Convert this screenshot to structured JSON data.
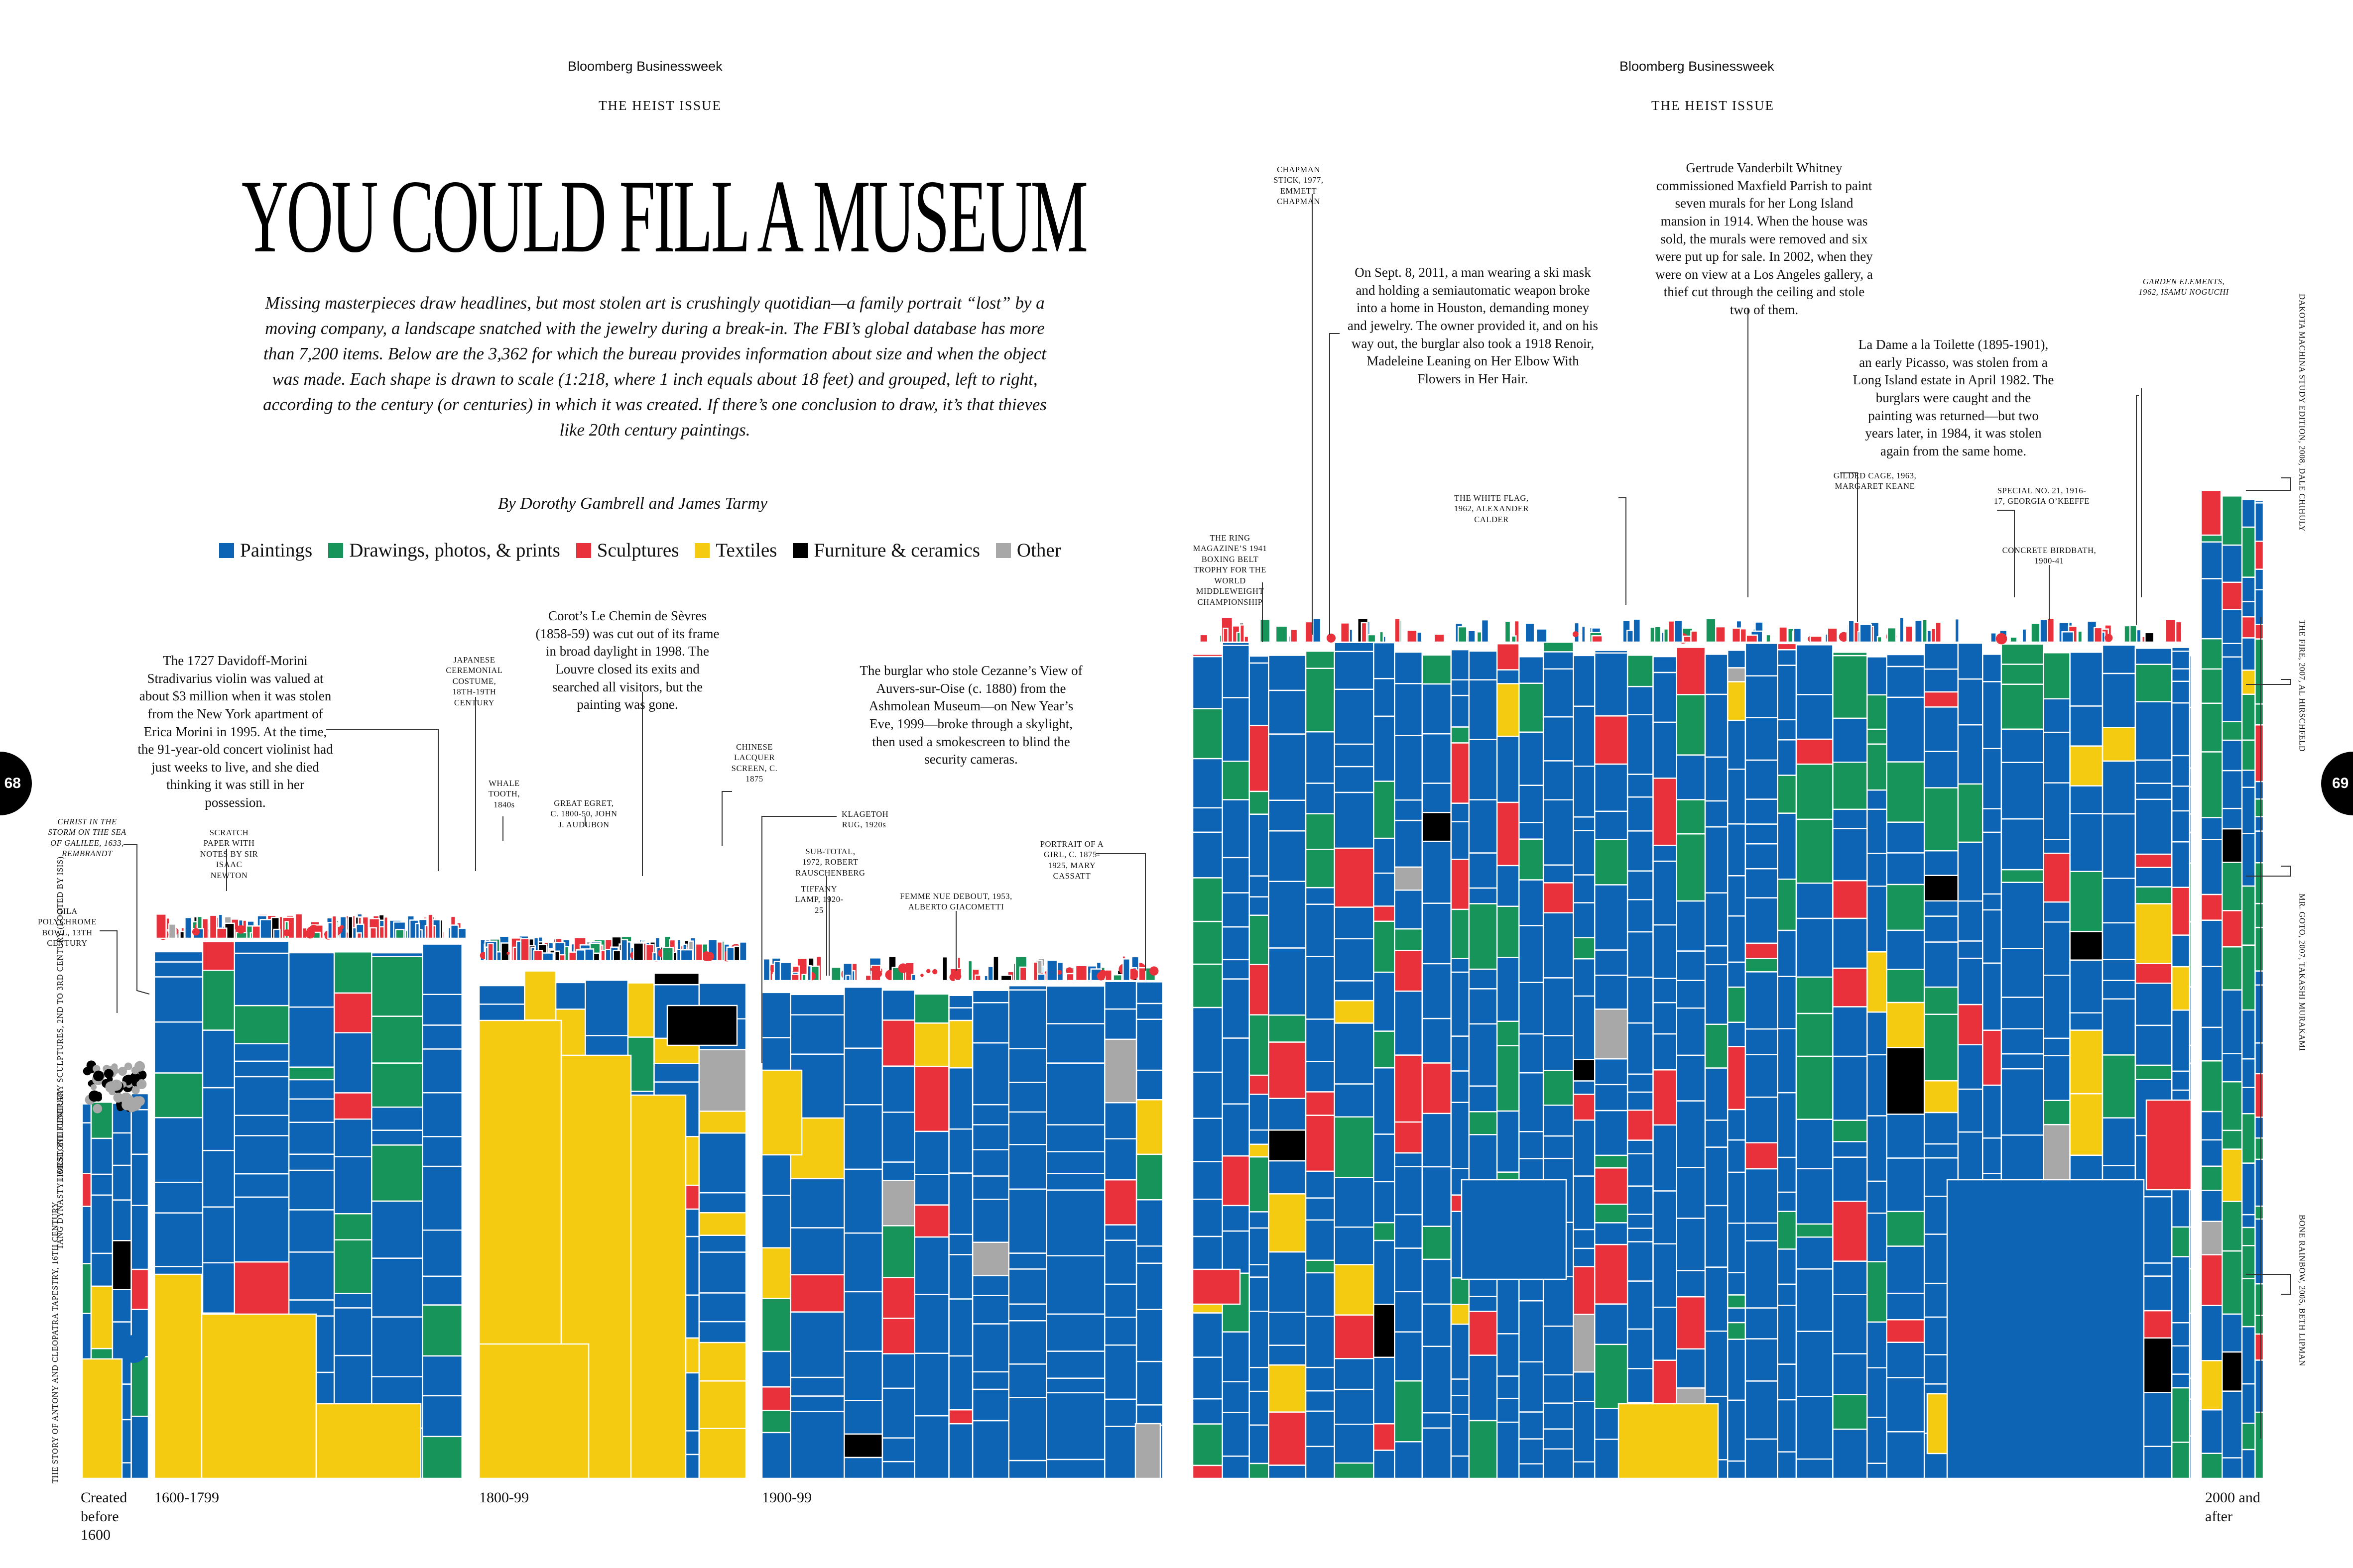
{
  "masthead": {
    "left": "Bloomberg Businessweek",
    "right": "Bloomberg Businessweek",
    "kicker_left": "THE HEIST ISSUE",
    "kicker_right": "THE HEIST ISSUE"
  },
  "title": "YOU COULD FILL A MUSEUM",
  "dek": "Missing masterpieces draw headlines, but most stolen art is crushingly quotidian—a family portrait “lost” by a moving company, a landscape snatched with the jewelry during a break-in. The FBI’s global database has more than 7,200 items. Below are the 3,362 for which the bureau provides information about size and when the object was made. Each shape is drawn to scale (1:218, where 1 inch equals about 18 feet) and grouped, left to right, according to the century (or centuries) in which it was created. If there’s one conclusion to draw, it’s that thieves like 20th century paintings.",
  "byline": "By Dorothy Gambrell and James Tarmy",
  "legend": [
    {
      "label": "Paintings",
      "color": "#0d63b4"
    },
    {
      "label": "Drawings, photos, & prints",
      "color": "#16945a"
    },
    {
      "label": "Sculptures",
      "color": "#e8313b"
    },
    {
      "label": "Textiles",
      "color": "#f5cb12"
    },
    {
      "label": "Furniture & ceramics",
      "color": "#000000"
    },
    {
      "label": "Other",
      "color": "#a8a8a8"
    }
  ],
  "page_numbers": {
    "left": "68",
    "right": "69"
  },
  "notes": {
    "stradivarius": "The 1727 Davidoff-Morini Stradivarius violin was valued at about $3 million when it was stolen from the New York apartment of Erica Morini in 1995. At the time, the 91-year-old concert violinist had just weeks to live, and she died thinking it was still in her possession.",
    "corot": "Corot’s Le Chemin de Sèvres (1858-59) was cut out of its frame in broad daylight in 1998. The Louvre closed its exits and searched all visitors, but the painting was gone.",
    "cezanne": "The burglar who stole Cezanne’s View of Auvers-sur-Oise (c. 1880) from the Ashmolean Museum—on New Year’s Eve, 1999—broke through a skylight, then used a smokescreen to blind the security cameras.",
    "houston": "On Sept. 8, 2011, a man wearing a ski mask and holding a semiautomatic weapon broke into a home in Houston, demanding money and jewelry. The owner provided it, and on his way out, the burglar also took a 1918 Renoir, Madeleine Leaning on Her Elbow With Flowers in Her Hair.",
    "whitney": "Gertrude Vanderbilt Whitney commissioned Maxfield Parrish to paint seven murals for her Long Island mansion in 1914. When the house was sold, the murals were removed and six were put up for sale. In 2002, when they were on view at a Los Angeles gallery, a thief cut through the ceiling and stole two of them.",
    "picasso": "La Dame a la Toilette (1895-1901), an early Picasso, was stolen from a Long Island estate in April 1982. The burglars were caught and the painting was returned—but two years later, in 1984, it was stolen again from the same home."
  },
  "labels": {
    "christ": "CHRIST IN THE STORM ON THE SEA OF GALILEE, 1633, REMBRANDT",
    "gila": "GILA POLYCHROME BOWL, 13TH CENTURY",
    "newton": "SCRATCH PAPER WITH NOTES BY SIR ISAAC NEWTON",
    "japanese": "JAPANESE CEREMONIAL COSTUME, 18TH-19TH CENTURY",
    "whale": "WHALE TOOTH, 1840s",
    "egret": "GREAT EGRET, C. 1800-50, JOHN J. AUDUBON",
    "chinese": "CHINESE LACQUER SCREEN, C. 1875",
    "klagetoh": "KLAGETOH RUG, 1920s",
    "subtotal": "SUB-TOTAL, 1972, ROBERT RAUSCHENBERG",
    "tiffany": "TIFFANY LAMP, 1920-25",
    "femme": "FEMME NUE DEBOUT, 1953, ALBERTO GIACOMETTI",
    "cassatt": "PORTRAIT OF A GIRL, C. 1875-1925, MARY CASSATT",
    "chapman": "CHAPMAN STICK, 1977, EMMETT CHAPMAN",
    "ring": "THE RING MAGAZINE’S 1941 BOXING BELT TROPHY FOR THE WORLD MIDDLEWEIGHT CHAMPIONSHIP",
    "whiteflag": "THE WHITE FLAG, 1962, ALEXANDER CALDER",
    "gilded": "GILDED CAGE, 1963, MARGARET KEANE",
    "special": "SPECIAL NO. 21, 1916-17, GEORGIA O’KEEFFE",
    "birdbath": "CONCRETE BIRDBATH, 1900-41",
    "garden": "GARDEN ELEMENTS, 1962, ISAMU NOGUCHI"
  },
  "vertical_labels": {
    "limestone": "LIMESTONE FUNERARY SCULPTURES, 2ND TO 3RD CENTURY (LOOTED BY ISIS)",
    "tang": "TANG DYNASTY HORSE, 8TH CENTURY",
    "antony": "THE STORY OF ANTONY AND CLEOPATRA TAPESTRY, 16TH CENTURY",
    "dakota": "DAKOTA MACHINA STUDY EDITION, 2008, DALE CHIHULY",
    "fire": "THE FIRE, 2007, AL HIRSCHFELD",
    "mrgoto": "MR. GOTO, 2007, TAKASHI MURAKAMI",
    "bone": "BONE RAINBOW, 2005, BETH LIPMAN"
  },
  "axis": {
    "pre1600": "Created before 1600",
    "c17": "1600-1799",
    "c19": "1800-99",
    "c20": "1900-99",
    "c21": "2000 and after"
  },
  "chart_data": {
    "type": "treemap",
    "unit": "objects",
    "total_items": 3362,
    "groups": [
      "Created before 1600",
      "1600-1799",
      "1800-99",
      "1900-99",
      "2000 and after"
    ],
    "categories": [
      "Paintings",
      "Drawings, photos, & prints",
      "Sculptures",
      "Textiles",
      "Furniture & ceramics",
      "Other"
    ],
    "colors": [
      "#0d63b4",
      "#16945a",
      "#e8313b",
      "#f5cb12",
      "#000000",
      "#a8a8a8"
    ]
  }
}
